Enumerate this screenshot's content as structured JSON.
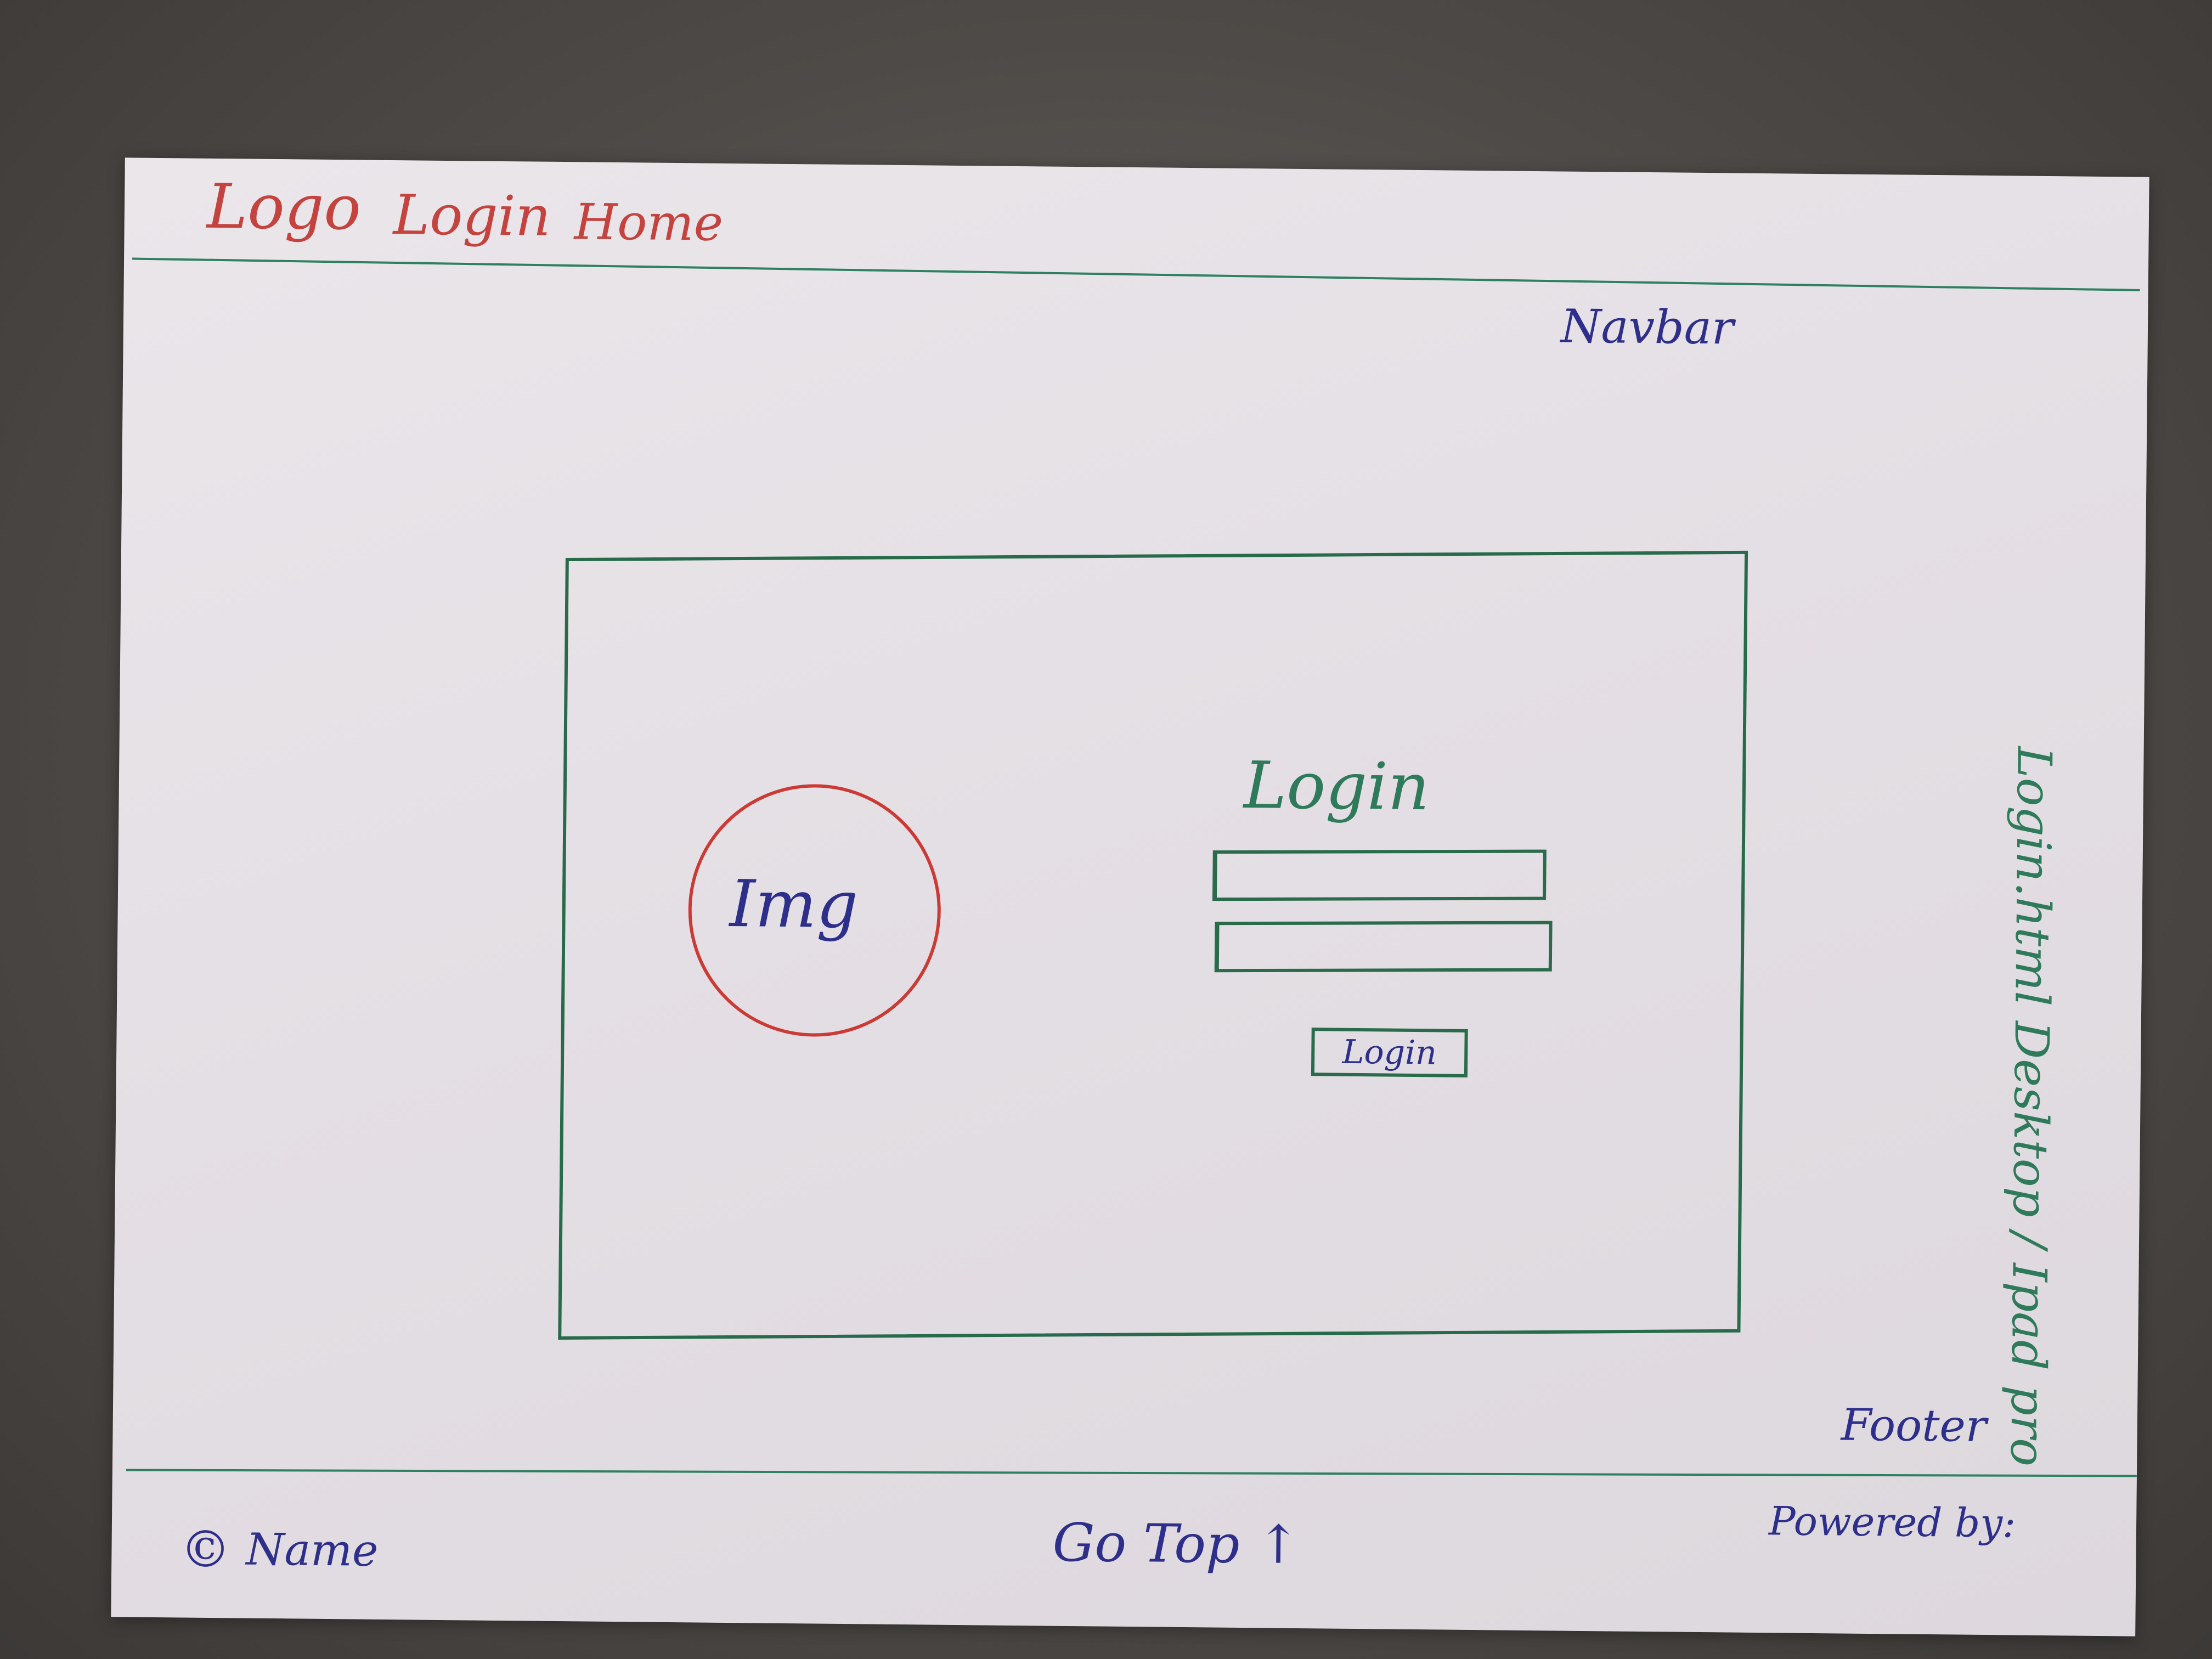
{
  "navbar": {
    "items": [
      "Logo",
      "Login",
      "Home"
    ],
    "caption": "Navbar"
  },
  "main": {
    "image_label": "Img",
    "form_title": "Login",
    "button_label": "Login"
  },
  "side_note": {
    "text": "Login.html Desktop / Ipad pro"
  },
  "footer": {
    "caption": "Footer",
    "copyright_symbol": "©",
    "name": "Name",
    "go_top": "Go Top ↑",
    "powered_by": "Powered by:"
  },
  "colors": {
    "paper": "#e6e2e6",
    "red_ink": "#c4433f",
    "blue_ink": "#2d2f8a",
    "green_ink": "#2f7a5a"
  }
}
